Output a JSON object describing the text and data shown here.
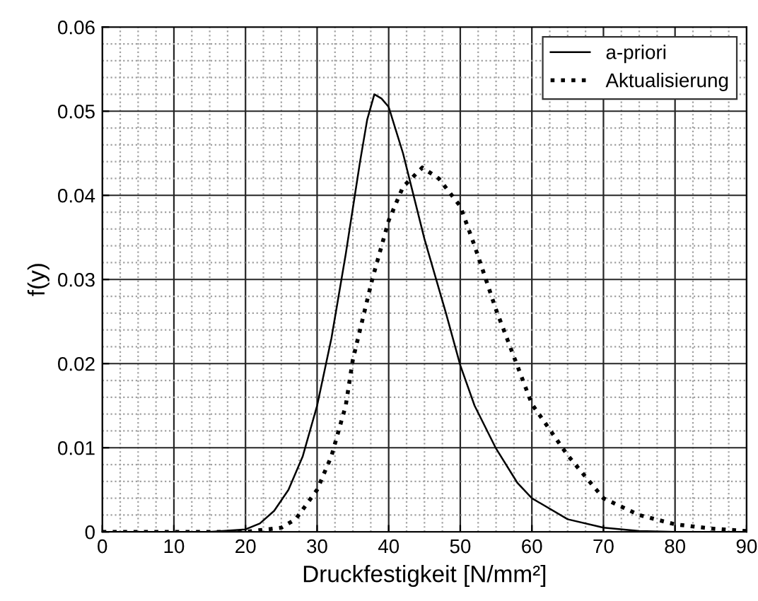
{
  "chart_data": {
    "type": "line",
    "xlabel": "Druckfestigkeit [N/mm²]",
    "ylabel": "f(y)",
    "xlim": [
      0,
      90
    ],
    "ylim": [
      0,
      0.06
    ],
    "xticks": [
      0,
      10,
      20,
      30,
      40,
      50,
      60,
      70,
      80,
      90
    ],
    "yticks": [
      0,
      0.01,
      0.02,
      0.03,
      0.04,
      0.05,
      0.06
    ],
    "grid": true,
    "legend": "top right",
    "marker": "none",
    "series": [
      {
        "name": "a-priori",
        "color": "#000000",
        "line_style": "solid",
        "x": [
          0,
          15,
          20,
          22,
          24,
          26,
          28,
          30,
          32,
          34,
          36,
          37,
          38,
          39,
          40,
          42,
          45,
          48,
          50,
          52,
          55,
          58,
          60,
          65,
          70,
          75,
          80,
          90
        ],
        "values": [
          0,
          0,
          0.0003,
          0.001,
          0.0025,
          0.005,
          0.009,
          0.015,
          0.023,
          0.033,
          0.044,
          0.049,
          0.052,
          0.0515,
          0.0505,
          0.045,
          0.0348,
          0.026,
          0.0198,
          0.015,
          0.0099,
          0.0058,
          0.004,
          0.0015,
          0.0005,
          0.0001,
          0,
          0
        ]
      },
      {
        "name": "Aktualisierung",
        "color": "#000000",
        "line_style": "dotted",
        "x": [
          0,
          20,
          25,
          27,
          30,
          32,
          34,
          35,
          37.7,
          40,
          42,
          44.7,
          47,
          50,
          52,
          55,
          60,
          65,
          70,
          75,
          80,
          85,
          90
        ],
        "values": [
          0,
          0,
          0.0005,
          0.0015,
          0.005,
          0.009,
          0.015,
          0.0205,
          0.03,
          0.037,
          0.041,
          0.0433,
          0.042,
          0.0387,
          0.034,
          0.0264,
          0.0152,
          0.0091,
          0.004,
          0.002,
          0.0009,
          0.0004,
          0.0001
        ]
      }
    ]
  }
}
